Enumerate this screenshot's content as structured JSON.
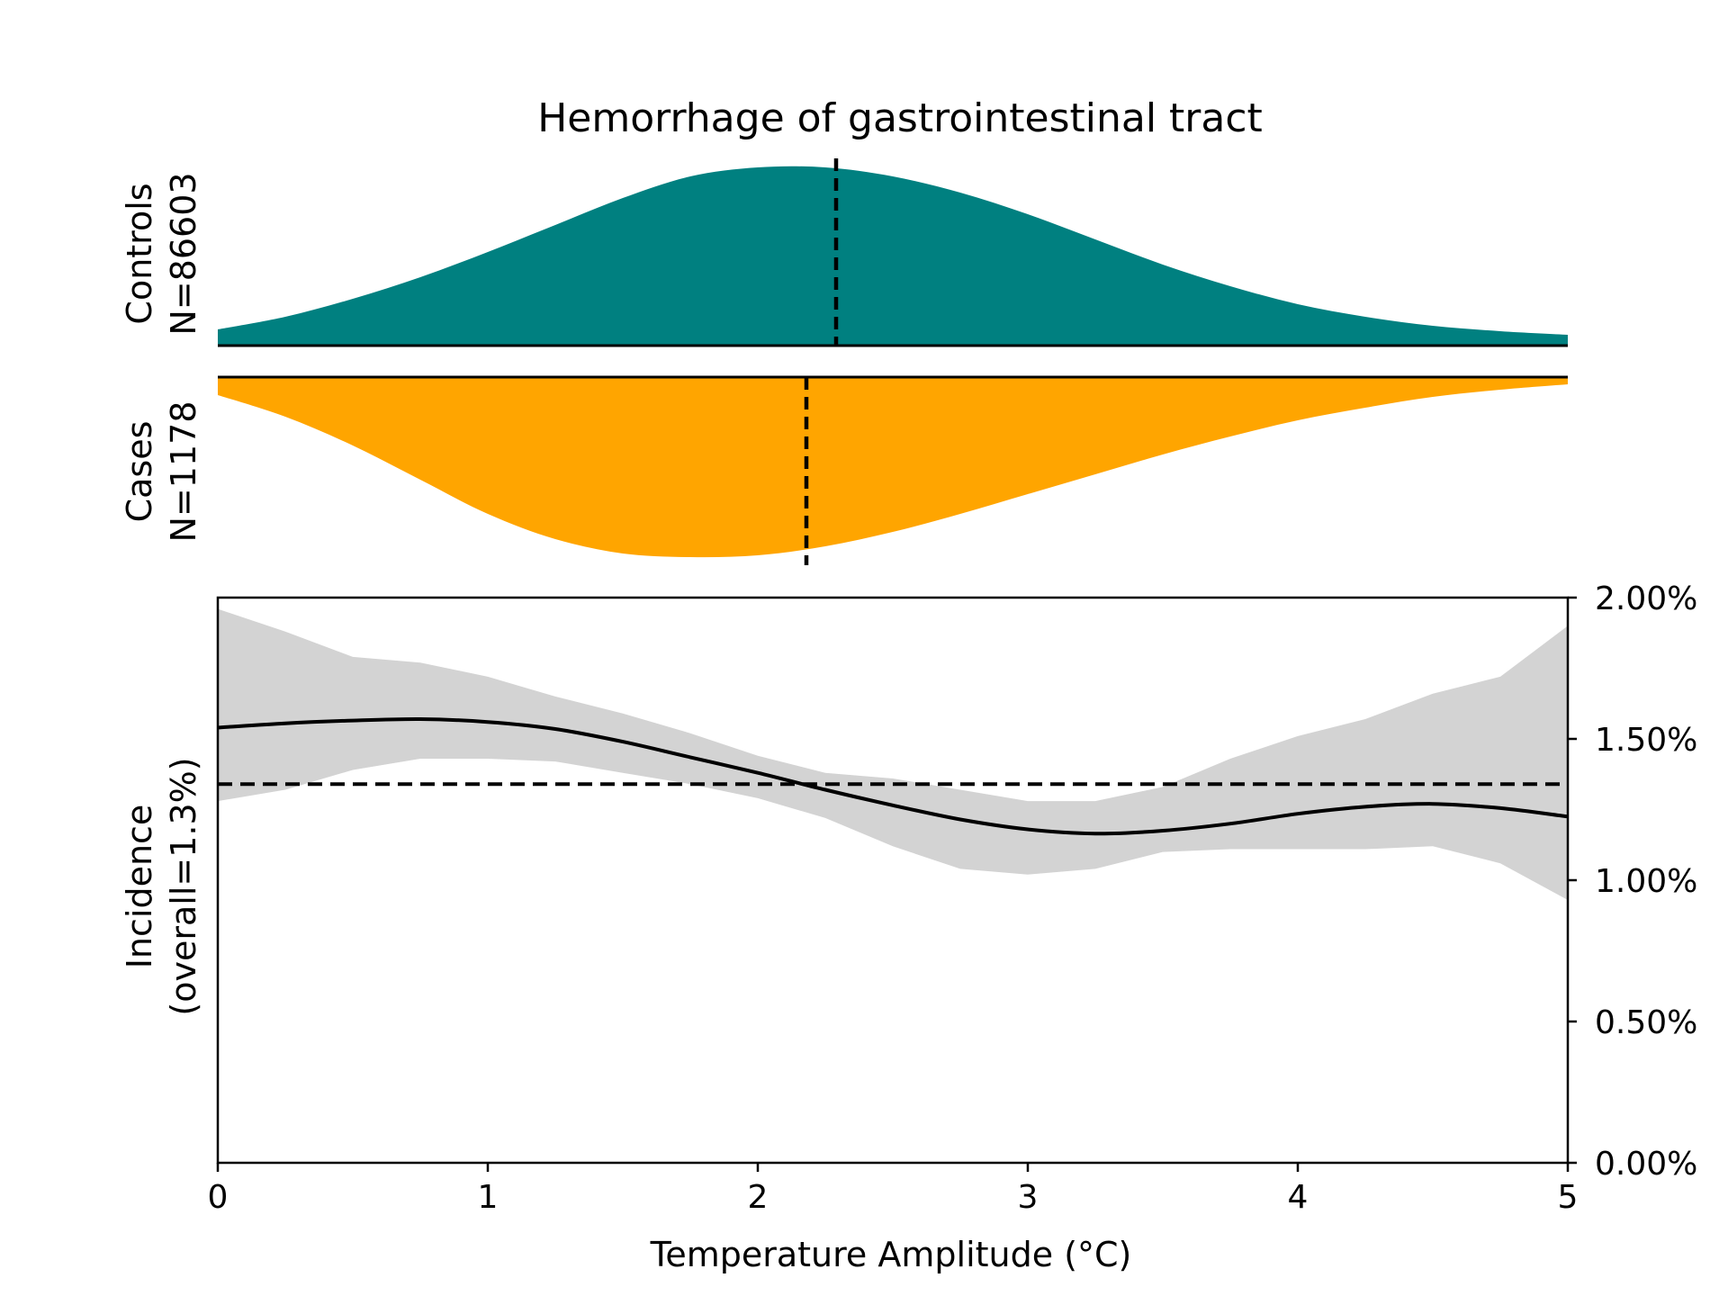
{
  "chart_data": {
    "type": "area",
    "title": "Hemorrhage of gastrointestinal tract",
    "xlabel": "Temperature Amplitude (°C)",
    "xlim": [
      0,
      5
    ],
    "x_ticks": [
      0,
      1,
      2,
      3,
      4,
      5
    ],
    "x_tick_labels": [
      "0",
      "1",
      "2",
      "3",
      "4",
      "5"
    ],
    "colors": {
      "controls": "#008080",
      "cases": "#FFA500",
      "ci_band": "#D3D3D3",
      "line": "#000000"
    },
    "controls": {
      "label_line1": "Controls",
      "label_line2": "N=86603",
      "x": [
        0,
        0.25,
        0.5,
        0.75,
        1.0,
        1.25,
        1.5,
        1.75,
        2.0,
        2.25,
        2.5,
        2.75,
        3.0,
        3.25,
        3.5,
        3.75,
        4.0,
        4.25,
        4.5,
        4.75,
        5.0
      ],
      "density": [
        0.09,
        0.16,
        0.26,
        0.38,
        0.52,
        0.67,
        0.82,
        0.94,
        0.99,
        0.99,
        0.94,
        0.85,
        0.73,
        0.59,
        0.45,
        0.33,
        0.23,
        0.16,
        0.11,
        0.08,
        0.06
      ],
      "median": 2.29
    },
    "cases": {
      "label_line1": "Cases",
      "label_line2": "N=1178",
      "x": [
        0,
        0.25,
        0.5,
        0.75,
        1.0,
        1.25,
        1.5,
        1.75,
        2.0,
        2.25,
        2.5,
        2.75,
        3.0,
        3.25,
        3.5,
        3.75,
        4.0,
        4.25,
        4.5,
        4.75,
        5.0
      ],
      "density": [
        0.1,
        0.22,
        0.38,
        0.57,
        0.76,
        0.9,
        0.98,
        1.0,
        0.99,
        0.94,
        0.86,
        0.76,
        0.65,
        0.54,
        0.43,
        0.33,
        0.24,
        0.17,
        0.11,
        0.07,
        0.04
      ],
      "median": 2.18
    },
    "incidence": {
      "ylabel_line1": "Incidence",
      "ylabel_line2": "(overall=1.3%)",
      "ylim": [
        0,
        2.0
      ],
      "y_ticks": [
        0,
        0.5,
        1.0,
        1.5,
        2.0
      ],
      "y_tick_labels": [
        "0.00%",
        "0.50%",
        "1.00%",
        "1.50%",
        "2.00%"
      ],
      "overall": 1.34,
      "x": [
        0,
        0.25,
        0.5,
        0.75,
        1.0,
        1.25,
        1.5,
        1.75,
        2.0,
        2.25,
        2.5,
        2.75,
        3.0,
        3.25,
        3.5,
        3.75,
        4.0,
        4.25,
        4.5,
        4.75,
        5.0
      ],
      "y": [
        1.54,
        1.555,
        1.565,
        1.57,
        1.56,
        1.535,
        1.49,
        1.435,
        1.38,
        1.32,
        1.265,
        1.215,
        1.18,
        1.165,
        1.175,
        1.2,
        1.235,
        1.26,
        1.27,
        1.255,
        1.225
      ],
      "ci_upper": [
        1.96,
        1.88,
        1.79,
        1.77,
        1.72,
        1.65,
        1.59,
        1.52,
        1.44,
        1.38,
        1.36,
        1.32,
        1.28,
        1.28,
        1.33,
        1.43,
        1.51,
        1.57,
        1.66,
        1.72,
        1.9
      ],
      "ci_lower": [
        1.28,
        1.32,
        1.39,
        1.43,
        1.43,
        1.42,
        1.38,
        1.34,
        1.29,
        1.22,
        1.12,
        1.04,
        1.02,
        1.04,
        1.1,
        1.11,
        1.11,
        1.11,
        1.12,
        1.06,
        0.93
      ]
    }
  }
}
